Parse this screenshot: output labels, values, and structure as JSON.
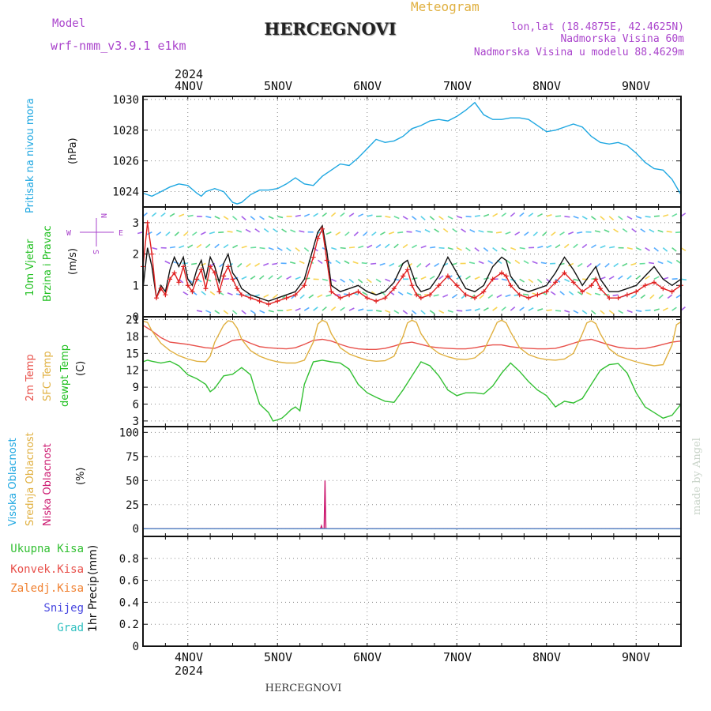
{
  "header": {
    "model_label": "Model",
    "model_name": "wrf-nmm_v3.9.1  e1km",
    "title": "HERCEGNOVI",
    "product": "Meteogram",
    "location": "lon,lat (18.4875E, 42.4625N)",
    "elevation": "Nadmorska Visina 60m",
    "model_elevation": "Nadmorska Visina u modelu 88.4629m"
  },
  "footer": {
    "station": "HERCEGNOVI",
    "credit": "made by Angel"
  },
  "colors": {
    "pressure": "#1ea7e1",
    "temp2m": "#e8504a",
    "sfc_temp": "#e0b040",
    "dewpoint": "#33c033",
    "wind_speed": "#111111",
    "wind_gust": "#e02020",
    "high_cloud": "#1ea7e1",
    "mid_cloud": "#e0b040",
    "low_cloud": "#cc1a70",
    "total_precip": "#33c033",
    "conv_precip": "#e8504a",
    "frozen_precip": "#f08030",
    "snow": "#4848e0",
    "hail": "#30c0c0",
    "compass": "#aa44cc",
    "label_purple": "#aa44cc"
  },
  "compass": {
    "north": "N",
    "south": "S",
    "east": "E",
    "west": "W"
  },
  "chart_data": [
    {
      "type": "line",
      "title": "",
      "ylabel_lines": [
        "Pritisak na nivou mora"
      ],
      "unit": "(hPa)",
      "x_ticks": [
        "4NOV",
        "5NOV",
        "6NOV",
        "7NOV",
        "8NOV",
        "9NOV"
      ],
      "x_year": "2024",
      "x_range_days": [
        -0.5,
        5.5
      ],
      "ylim": [
        1023,
        1030.2
      ],
      "y_ticks": [
        1024,
        1026,
        1028,
        1030
      ],
      "grid": true,
      "series": [
        {
          "color": "pressure",
          "x": [
            -0.5,
            -0.4,
            -0.3,
            -0.2,
            -0.1,
            0.0,
            0.1,
            0.15,
            0.2,
            0.3,
            0.4,
            0.5,
            0.55,
            0.6,
            0.7,
            0.8,
            0.9,
            1.0,
            1.1,
            1.2,
            1.3,
            1.4,
            1.5,
            1.6,
            1.7,
            1.8,
            1.9,
            2.0,
            2.1,
            2.2,
            2.3,
            2.4,
            2.5,
            2.6,
            2.7,
            2.8,
            2.9,
            3.0,
            3.1,
            3.2,
            3.3,
            3.4,
            3.5,
            3.6,
            3.7,
            3.8,
            3.9,
            4.0,
            4.1,
            4.2,
            4.3,
            4.4,
            4.5,
            4.6,
            4.7,
            4.8,
            4.9,
            5.0,
            5.1,
            5.2,
            5.3,
            5.4,
            5.5
          ],
          "y": [
            1023.9,
            1023.7,
            1024.0,
            1024.3,
            1024.5,
            1024.4,
            1023.9,
            1023.7,
            1024.0,
            1024.2,
            1024.0,
            1023.3,
            1023.2,
            1023.3,
            1023.8,
            1024.1,
            1024.1,
            1024.2,
            1024.5,
            1024.9,
            1024.5,
            1024.4,
            1025.0,
            1025.4,
            1025.8,
            1025.7,
            1026.2,
            1026.8,
            1027.4,
            1027.2,
            1027.3,
            1027.6,
            1028.1,
            1028.3,
            1028.6,
            1028.7,
            1028.6,
            1028.9,
            1029.3,
            1029.8,
            1029.0,
            1028.7,
            1028.7,
            1028.8,
            1028.8,
            1028.7,
            1028.3,
            1027.9,
            1028.0,
            1028.2,
            1028.4,
            1028.2,
            1027.6,
            1027.2,
            1027.1,
            1027.2,
            1027.0,
            1026.5,
            1025.9,
            1025.5,
            1025.4,
            1024.8,
            1023.8
          ]
        }
      ]
    },
    {
      "type": "line",
      "title": "",
      "ylabel_lines": [
        "10m Vjetar",
        "Brzina i Pravac"
      ],
      "unit": "(m/s)",
      "ylim": [
        0,
        3.5
      ],
      "y_ticks": [
        0,
        1,
        2,
        3
      ],
      "grid": true,
      "series": [
        {
          "color": "wind_speed",
          "x": [
            -0.5,
            -0.45,
            -0.4,
            -0.35,
            -0.3,
            -0.25,
            -0.2,
            -0.15,
            -0.1,
            -0.05,
            0.0,
            0.05,
            0.1,
            0.15,
            0.2,
            0.25,
            0.3,
            0.35,
            0.4,
            0.45,
            0.5,
            0.55,
            0.6,
            0.7,
            0.8,
            0.9,
            1.0,
            1.1,
            1.2,
            1.3,
            1.4,
            1.45,
            1.5,
            1.55,
            1.6,
            1.7,
            1.8,
            1.9,
            2.0,
            2.1,
            2.2,
            2.3,
            2.4,
            2.45,
            2.5,
            2.55,
            2.6,
            2.7,
            2.8,
            2.9,
            3.0,
            3.1,
            3.2,
            3.3,
            3.4,
            3.5,
            3.55,
            3.6,
            3.7,
            3.8,
            3.9,
            4.0,
            4.1,
            4.2,
            4.3,
            4.4,
            4.5,
            4.55,
            4.6,
            4.7,
            4.8,
            4.9,
            5.0,
            5.1,
            5.2,
            5.3,
            5.4,
            5.5
          ],
          "y": [
            0.9,
            2.2,
            1.6,
            0.6,
            1.0,
            0.8,
            1.5,
            1.9,
            1.6,
            1.9,
            1.2,
            1.0,
            1.5,
            1.8,
            1.2,
            1.9,
            1.6,
            1.1,
            1.7,
            2.0,
            1.4,
            1.2,
            0.9,
            0.7,
            0.6,
            0.5,
            0.6,
            0.7,
            0.8,
            1.2,
            2.2,
            2.7,
            2.9,
            2.1,
            1.0,
            0.8,
            0.9,
            1.0,
            0.8,
            0.7,
            0.8,
            1.1,
            1.7,
            1.8,
            1.4,
            1.0,
            0.8,
            0.9,
            1.3,
            1.9,
            1.4,
            0.9,
            0.8,
            1.0,
            1.6,
            1.9,
            1.8,
            1.3,
            0.9,
            0.8,
            0.9,
            1.0,
            1.4,
            1.9,
            1.5,
            1.0,
            1.4,
            1.6,
            1.2,
            0.8,
            0.8,
            0.9,
            1.0,
            1.3,
            1.6,
            1.2,
            1.0,
            1.2
          ]
        },
        {
          "color": "wind_gust",
          "x": [
            -0.5,
            -0.45,
            -0.4,
            -0.35,
            -0.3,
            -0.25,
            -0.2,
            -0.15,
            -0.1,
            -0.05,
            0.0,
            0.05,
            0.1,
            0.15,
            0.2,
            0.25,
            0.3,
            0.35,
            0.4,
            0.45,
            0.5,
            0.55,
            0.6,
            0.7,
            0.8,
            0.9,
            1.0,
            1.1,
            1.2,
            1.3,
            1.4,
            1.45,
            1.5,
            1.55,
            1.6,
            1.7,
            1.8,
            1.9,
            2.0,
            2.1,
            2.2,
            2.3,
            2.4,
            2.45,
            2.5,
            2.55,
            2.6,
            2.7,
            2.8,
            2.9,
            3.0,
            3.1,
            3.2,
            3.3,
            3.4,
            3.5,
            3.55,
            3.6,
            3.7,
            3.8,
            3.9,
            4.0,
            4.1,
            4.2,
            4.3,
            4.4,
            4.5,
            4.55,
            4.6,
            4.7,
            4.8,
            4.9,
            5.0,
            5.1,
            5.2,
            5.3,
            5.4,
            5.5
          ],
          "y": [
            1.6,
            3.0,
            2.0,
            0.6,
            0.9,
            0.7,
            1.2,
            1.4,
            1.1,
            1.6,
            1.0,
            0.8,
            1.2,
            1.5,
            0.9,
            1.6,
            1.4,
            0.8,
            1.3,
            1.6,
            1.2,
            0.9,
            0.7,
            0.6,
            0.5,
            0.4,
            0.5,
            0.6,
            0.7,
            1.0,
            1.9,
            2.5,
            2.8,
            1.8,
            0.8,
            0.6,
            0.7,
            0.8,
            0.6,
            0.5,
            0.6,
            0.9,
            1.3,
            1.5,
            1.0,
            0.7,
            0.6,
            0.7,
            1.0,
            1.3,
            1.0,
            0.7,
            0.6,
            0.8,
            1.2,
            1.4,
            1.3,
            1.0,
            0.7,
            0.6,
            0.7,
            0.8,
            1.1,
            1.4,
            1.1,
            0.8,
            1.0,
            1.2,
            0.9,
            0.6,
            0.6,
            0.7,
            0.8,
            1.0,
            1.1,
            0.9,
            0.8,
            1.0
          ]
        }
      ]
    },
    {
      "type": "line",
      "title": "",
      "ylabel_lines": [
        "2m Temp",
        "SFC Temp",
        "dewpt Temp"
      ],
      "unit": "(C)",
      "ylim": [
        2,
        21.5
      ],
      "y_ticks": [
        3,
        6,
        9,
        12,
        15,
        18,
        21
      ],
      "grid": true,
      "series": [
        {
          "color": "temp2m",
          "x": [
            -0.5,
            -0.4,
            -0.3,
            -0.2,
            -0.1,
            0.0,
            0.1,
            0.2,
            0.3,
            0.4,
            0.5,
            0.6,
            0.7,
            0.8,
            0.9,
            1.0,
            1.1,
            1.2,
            1.3,
            1.4,
            1.5,
            1.6,
            1.7,
            1.8,
            1.9,
            2.0,
            2.1,
            2.2,
            2.3,
            2.4,
            2.5,
            2.6,
            2.7,
            2.8,
            2.9,
            3.0,
            3.1,
            3.2,
            3.3,
            3.4,
            3.5,
            3.6,
            3.7,
            3.8,
            3.9,
            4.0,
            4.1,
            4.2,
            4.3,
            4.4,
            4.5,
            4.6,
            4.7,
            4.8,
            4.9,
            5.0,
            5.1,
            5.2,
            5.3,
            5.4,
            5.5
          ],
          "y": [
            20.0,
            19.0,
            17.8,
            17.0,
            16.8,
            16.6,
            16.3,
            16.0,
            15.9,
            16.5,
            17.3,
            17.5,
            16.8,
            16.2,
            16.0,
            15.9,
            15.8,
            16.0,
            16.6,
            17.3,
            17.5,
            17.2,
            16.6,
            16.1,
            15.8,
            15.7,
            15.7,
            15.9,
            16.3,
            16.8,
            17.0,
            16.6,
            16.2,
            16.0,
            15.9,
            15.8,
            15.8,
            16.0,
            16.3,
            16.5,
            16.5,
            16.2,
            16.0,
            15.9,
            15.8,
            15.8,
            15.9,
            16.3,
            16.8,
            17.3,
            17.5,
            17.0,
            16.5,
            16.1,
            15.9,
            15.8,
            15.9,
            16.2,
            16.6,
            17.0,
            17.2
          ]
        },
        {
          "color": "sfc_temp",
          "x": [
            -0.5,
            -0.45,
            -0.4,
            -0.3,
            -0.2,
            -0.1,
            0.0,
            0.1,
            0.2,
            0.25,
            0.3,
            0.4,
            0.45,
            0.5,
            0.55,
            0.6,
            0.7,
            0.8,
            0.9,
            1.0,
            1.1,
            1.2,
            1.3,
            1.4,
            1.45,
            1.5,
            1.55,
            1.6,
            1.7,
            1.8,
            1.9,
            2.0,
            2.1,
            2.2,
            2.3,
            2.4,
            2.45,
            2.5,
            2.55,
            2.6,
            2.7,
            2.8,
            2.9,
            3.0,
            3.1,
            3.2,
            3.3,
            3.4,
            3.45,
            3.5,
            3.55,
            3.6,
            3.7,
            3.8,
            3.9,
            4.0,
            4.1,
            4.2,
            4.3,
            4.4,
            4.45,
            4.5,
            4.55,
            4.6,
            4.7,
            4.8,
            4.9,
            5.0,
            5.1,
            5.2,
            5.3,
            5.4,
            5.45,
            5.5
          ],
          "y": [
            20.7,
            20.5,
            19.0,
            16.8,
            15.5,
            14.6,
            14.0,
            13.6,
            13.5,
            14.5,
            17.0,
            20.0,
            20.8,
            20.6,
            19.5,
            17.5,
            15.5,
            14.5,
            13.9,
            13.5,
            13.3,
            13.3,
            13.8,
            17.0,
            20.2,
            20.9,
            20.5,
            18.5,
            16.0,
            14.9,
            14.3,
            13.8,
            13.6,
            13.7,
            14.5,
            18.0,
            20.4,
            20.9,
            20.5,
            18.5,
            16.2,
            15.0,
            14.4,
            14.0,
            13.9,
            14.2,
            15.5,
            18.8,
            20.5,
            20.9,
            20.4,
            18.8,
            16.0,
            14.8,
            14.2,
            13.9,
            13.8,
            14.0,
            15.0,
            18.5,
            20.4,
            20.8,
            20.3,
            18.5,
            15.8,
            14.6,
            14.0,
            13.5,
            13.1,
            12.8,
            13.0,
            16.5,
            20.1,
            20.6
          ]
        },
        {
          "color": "dewpoint",
          "x": [
            -0.5,
            -0.45,
            -0.4,
            -0.3,
            -0.2,
            -0.1,
            0.0,
            0.1,
            0.2,
            0.25,
            0.3,
            0.4,
            0.5,
            0.6,
            0.7,
            0.75,
            0.8,
            0.9,
            0.95,
            1.0,
            1.05,
            1.1,
            1.15,
            1.2,
            1.25,
            1.3,
            1.4,
            1.5,
            1.6,
            1.7,
            1.8,
            1.9,
            2.0,
            2.1,
            2.2,
            2.3,
            2.4,
            2.5,
            2.6,
            2.7,
            2.8,
            2.9,
            3.0,
            3.1,
            3.2,
            3.3,
            3.4,
            3.5,
            3.6,
            3.7,
            3.8,
            3.9,
            4.0,
            4.1,
            4.2,
            4.3,
            4.4,
            4.5,
            4.6,
            4.7,
            4.8,
            4.9,
            5.0,
            5.1,
            5.2,
            5.3,
            5.4,
            5.5
          ],
          "y": [
            13.5,
            13.8,
            13.6,
            13.3,
            13.6,
            12.8,
            11.2,
            10.5,
            9.5,
            8.2,
            8.8,
            11.0,
            11.3,
            12.5,
            11.2,
            8.5,
            6.0,
            4.5,
            3.0,
            3.2,
            3.5,
            4.2,
            5.0,
            5.5,
            4.8,
            9.5,
            13.5,
            13.8,
            13.5,
            13.3,
            12.2,
            9.5,
            8.0,
            7.2,
            6.5,
            6.3,
            8.5,
            11.0,
            13.5,
            12.8,
            11.0,
            8.5,
            7.5,
            8.0,
            8.0,
            7.8,
            9.2,
            11.5,
            13.3,
            11.8,
            10.0,
            8.5,
            7.5,
            5.5,
            6.5,
            6.2,
            7.0,
            9.5,
            12.0,
            13.0,
            13.2,
            11.5,
            8.0,
            5.5,
            4.5,
            3.5,
            4.0,
            6.0
          ]
        }
      ]
    },
    {
      "type": "line",
      "title": "",
      "ylabel_lines": [
        "Visoka Oblacnost",
        "Srednja Oblacnost",
        "Niska  Oblacnost"
      ],
      "unit": "(%)",
      "ylim": [
        -8,
        106
      ],
      "y_ticks": [
        0,
        25,
        50,
        75,
        100
      ],
      "grid": true,
      "series": [
        {
          "color": "low_cloud",
          "x": [
            -0.5,
            1.48,
            1.49,
            1.5,
            1.51,
            1.52,
            1.53,
            1.54,
            1.55,
            5.5
          ],
          "y": [
            0,
            0,
            3,
            0,
            0,
            0,
            50,
            0,
            0,
            0
          ]
        }
      ]
    },
    {
      "type": "bar",
      "title": "",
      "ylabel_lines": [
        "1hr Precip"
      ],
      "unit": "(mm)",
      "ylim": [
        0,
        1.0
      ],
      "y_ticks": [
        0,
        0.2,
        0.4,
        0.6,
        0.8
      ],
      "grid": true,
      "legend_labels": [
        "Ukupna  Kisa",
        "Konvek.Kisa",
        "Zaledj.Kisa",
        "Snijeg",
        "Grad"
      ],
      "series": []
    }
  ]
}
